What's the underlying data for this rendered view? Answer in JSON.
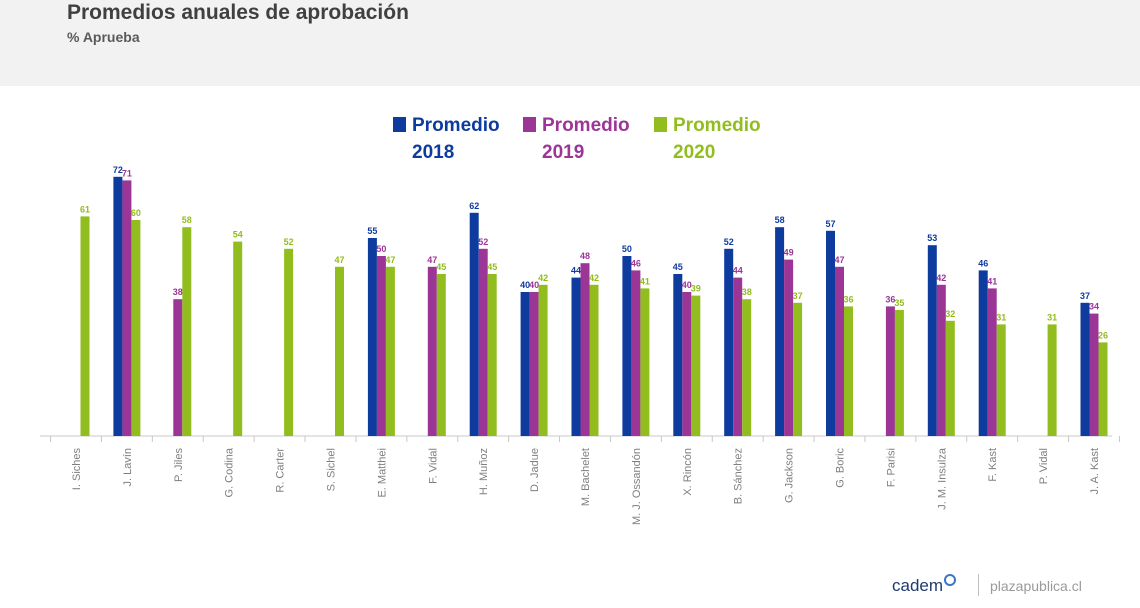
{
  "header": {
    "title": "Promedios anuales de aprobación",
    "subtitle": "% Aprueba"
  },
  "footer": {
    "brand": "cadem",
    "site": "plazapublica.cl"
  },
  "colors": {
    "s2018": "#0d3b9e",
    "s2019": "#9b3596",
    "s2020": "#92bd1e"
  },
  "chart_data": {
    "type": "bar",
    "title": "Promedios anuales de aprobación",
    "subtitle": "% Aprueba",
    "legend_position": "top",
    "ylim": [
      0,
      75
    ],
    "grid": false,
    "categories": [
      "I. Siches",
      "J. Lavín",
      "P. Jiles",
      "G. Codina",
      "R. Carter",
      "S. Sichel",
      "E. Matthei",
      "F. Vidal",
      "H. Muñoz",
      "D. Jadue",
      "M. Bachelet",
      "M. J. Ossandón",
      "X. Rincón",
      "B. Sánchez",
      "G. Jackson",
      "G. Boric",
      "F. Parisi",
      "J. M. Insulza",
      "F. Kast",
      "P. Vidal",
      "J. A. Kast"
    ],
    "series": [
      {
        "name": "Promedio 2018",
        "legend": [
          "Promedio",
          "2018"
        ],
        "color": "#0d3b9e",
        "values": [
          null,
          72,
          null,
          null,
          null,
          null,
          55,
          null,
          62,
          40,
          44,
          50,
          45,
          52,
          58,
          57,
          null,
          53,
          46,
          null,
          37
        ]
      },
      {
        "name": "Promedio 2019",
        "legend": [
          "Promedio",
          "2019"
        ],
        "color": "#9b3596",
        "values": [
          null,
          71,
          38,
          null,
          null,
          null,
          50,
          47,
          52,
          40,
          48,
          46,
          40,
          44,
          49,
          47,
          36,
          42,
          41,
          null,
          34
        ]
      },
      {
        "name": "Promedio 2020",
        "legend": [
          "Promedio",
          "2020"
        ],
        "color": "#92bd1e",
        "values": [
          61,
          60,
          58,
          54,
          52,
          47,
          47,
          45,
          45,
          42,
          42,
          41,
          39,
          38,
          37,
          36,
          35,
          32,
          31,
          31,
          26
        ]
      }
    ]
  }
}
